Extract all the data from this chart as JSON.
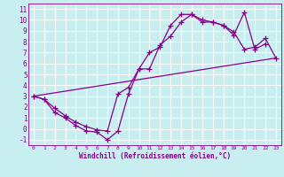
{
  "background_color": "#c8eef0",
  "grid_color": "#aadddd",
  "line_color": "#880088",
  "marker": "+",
  "xlabel": "Windchill (Refroidissement éolien,°C)",
  "xlim": [
    -0.5,
    23.5
  ],
  "ylim": [
    -1.5,
    11.5
  ],
  "xticks": [
    0,
    1,
    2,
    3,
    4,
    5,
    6,
    7,
    8,
    9,
    10,
    11,
    12,
    13,
    14,
    15,
    16,
    17,
    18,
    19,
    20,
    21,
    22,
    23
  ],
  "yticks": [
    -1,
    0,
    1,
    2,
    3,
    4,
    5,
    6,
    7,
    8,
    9,
    10,
    11
  ],
  "line1_x": [
    0,
    1,
    2,
    3,
    4,
    5,
    6,
    7,
    8,
    9,
    10,
    11,
    12,
    13,
    14,
    15,
    16,
    17,
    18,
    19,
    20,
    21,
    22
  ],
  "line1_y": [
    3.0,
    2.7,
    1.5,
    1.0,
    0.3,
    -0.2,
    -0.3,
    -1.0,
    -0.2,
    3.2,
    5.5,
    5.5,
    7.7,
    8.5,
    9.8,
    10.5,
    9.8,
    9.8,
    9.5,
    8.6,
    10.7,
    7.3,
    7.8
  ],
  "line2_x": [
    0,
    1,
    2,
    3,
    4,
    5,
    6,
    7,
    8,
    9,
    10,
    11,
    12,
    13,
    14,
    15,
    16,
    17,
    18,
    19,
    20,
    21,
    22,
    23
  ],
  "line2_y": [
    3.0,
    2.7,
    1.9,
    1.2,
    0.6,
    0.2,
    -0.1,
    -0.2,
    3.2,
    3.8,
    5.5,
    7.0,
    7.5,
    9.5,
    10.5,
    10.5,
    10.0,
    9.8,
    9.5,
    8.9,
    7.3,
    7.5,
    8.3,
    6.5
  ],
  "line3_x": [
    0,
    23
  ],
  "line3_y": [
    3.0,
    6.5
  ]
}
